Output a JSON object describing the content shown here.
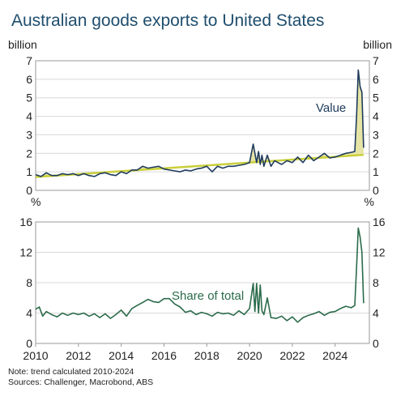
{
  "title": "Australian goods exports to United States",
  "notes": {
    "note": "Note: trend calculated 2010-2024",
    "sources": "Sources: Challenger, Macrobond, ABS"
  },
  "colors": {
    "value_line": "#1f3b5c",
    "trend_line": "#c9cf3a",
    "fill": "#e6e5a6",
    "share_line": "#2b6b4a",
    "title": "#1f4e6e"
  },
  "chart_data": [
    {
      "type": "area",
      "unit_left": "billion",
      "unit_right": "billion",
      "ylim": [
        0,
        7
      ],
      "yticks": [
        0,
        1,
        2,
        3,
        4,
        5,
        6,
        7
      ],
      "xlim": [
        2010,
        2025.6
      ],
      "annotation": "Value",
      "series": [
        {
          "role": "value",
          "x": [
            2010.0,
            2010.25,
            2010.5,
            2010.75,
            2011.0,
            2011.25,
            2011.5,
            2011.75,
            2012.0,
            2012.25,
            2012.5,
            2012.75,
            2013.0,
            2013.25,
            2013.5,
            2013.75,
            2014.0,
            2014.25,
            2014.5,
            2014.75,
            2015.0,
            2015.25,
            2015.5,
            2015.75,
            2016.0,
            2016.25,
            2016.5,
            2016.75,
            2017.0,
            2017.25,
            2017.5,
            2017.75,
            2018.0,
            2018.25,
            2018.5,
            2018.75,
            2019.0,
            2019.25,
            2019.5,
            2019.75,
            2020.0,
            2020.17,
            2020.33,
            2020.42,
            2020.5,
            2020.58,
            2020.67,
            2020.83,
            2021.0,
            2021.17,
            2021.33,
            2021.5,
            2021.75,
            2022.0,
            2022.25,
            2022.5,
            2022.75,
            2023.0,
            2023.25,
            2023.5,
            2023.75,
            2024.0,
            2024.25,
            2024.5,
            2024.75,
            2024.92,
            2025.0,
            2025.08,
            2025.17,
            2025.25,
            2025.33
          ],
          "y": [
            0.85,
            0.75,
            0.95,
            0.8,
            0.8,
            0.9,
            0.85,
            0.9,
            0.8,
            0.9,
            0.8,
            0.75,
            0.9,
            0.95,
            0.85,
            0.8,
            1.0,
            0.9,
            1.1,
            1.1,
            1.3,
            1.2,
            1.25,
            1.3,
            1.15,
            1.1,
            1.05,
            1.0,
            1.1,
            1.05,
            1.15,
            1.2,
            1.3,
            1.0,
            1.3,
            1.2,
            1.3,
            1.3,
            1.35,
            1.4,
            1.5,
            2.5,
            1.5,
            2.1,
            1.4,
            1.9,
            1.3,
            1.9,
            1.3,
            1.6,
            1.5,
            1.4,
            1.6,
            1.5,
            1.8,
            1.5,
            1.9,
            1.6,
            1.8,
            2.0,
            1.75,
            1.8,
            1.9,
            2.0,
            2.05,
            2.1,
            4.0,
            6.5,
            5.6,
            5.3,
            2.3
          ]
        },
        {
          "role": "trend",
          "x": [
            2010,
            2025.33
          ],
          "y": [
            0.72,
            1.92
          ]
        }
      ]
    },
    {
      "type": "line",
      "unit_left": "%",
      "unit_right": "%",
      "ylim": [
        0,
        16
      ],
      "yticks": [
        0,
        4,
        8,
        12,
        16
      ],
      "xlim": [
        2010,
        2025.6
      ],
      "xticks": [
        "2010",
        "2012",
        "2014",
        "2016",
        "2018",
        "2020",
        "2022",
        "2024"
      ],
      "annotation": "Share of total",
      "series": [
        {
          "role": "share",
          "x": [
            2010.0,
            2010.17,
            2010.33,
            2010.5,
            2010.75,
            2011.0,
            2011.25,
            2011.5,
            2011.75,
            2012.0,
            2012.25,
            2012.5,
            2012.75,
            2013.0,
            2013.25,
            2013.5,
            2013.75,
            2014.0,
            2014.25,
            2014.5,
            2014.75,
            2015.0,
            2015.25,
            2015.5,
            2015.75,
            2016.0,
            2016.25,
            2016.5,
            2016.75,
            2017.0,
            2017.25,
            2017.5,
            2017.75,
            2018.0,
            2018.25,
            2018.5,
            2018.75,
            2019.0,
            2019.25,
            2019.5,
            2019.75,
            2020.0,
            2020.17,
            2020.25,
            2020.33,
            2020.42,
            2020.5,
            2020.58,
            2020.67,
            2020.83,
            2021.0,
            2021.25,
            2021.5,
            2021.75,
            2022.0,
            2022.25,
            2022.5,
            2022.75,
            2023.0,
            2023.25,
            2023.5,
            2023.75,
            2024.0,
            2024.25,
            2024.5,
            2024.75,
            2024.92,
            2025.0,
            2025.08,
            2025.17,
            2025.25,
            2025.33
          ],
          "y": [
            4.5,
            4.8,
            3.6,
            4.2,
            3.8,
            3.5,
            4.0,
            3.7,
            4.0,
            3.8,
            4.0,
            3.6,
            3.9,
            3.4,
            3.9,
            3.3,
            3.8,
            4.4,
            3.6,
            4.6,
            5.0,
            5.4,
            5.8,
            5.5,
            5.4,
            5.9,
            5.9,
            5.2,
            4.8,
            4.1,
            4.3,
            3.8,
            4.1,
            3.9,
            3.6,
            4.1,
            3.9,
            4.0,
            3.7,
            4.3,
            3.8,
            4.6,
            7.9,
            4.2,
            7.9,
            4.0,
            7.7,
            4.3,
            3.8,
            6.0,
            3.4,
            3.3,
            3.6,
            3.0,
            3.5,
            2.8,
            3.4,
            3.7,
            3.9,
            4.2,
            3.7,
            4.1,
            4.2,
            4.6,
            4.9,
            4.7,
            5.0,
            10.0,
            15.2,
            14.0,
            12.0,
            5.3
          ]
        }
      ]
    }
  ]
}
